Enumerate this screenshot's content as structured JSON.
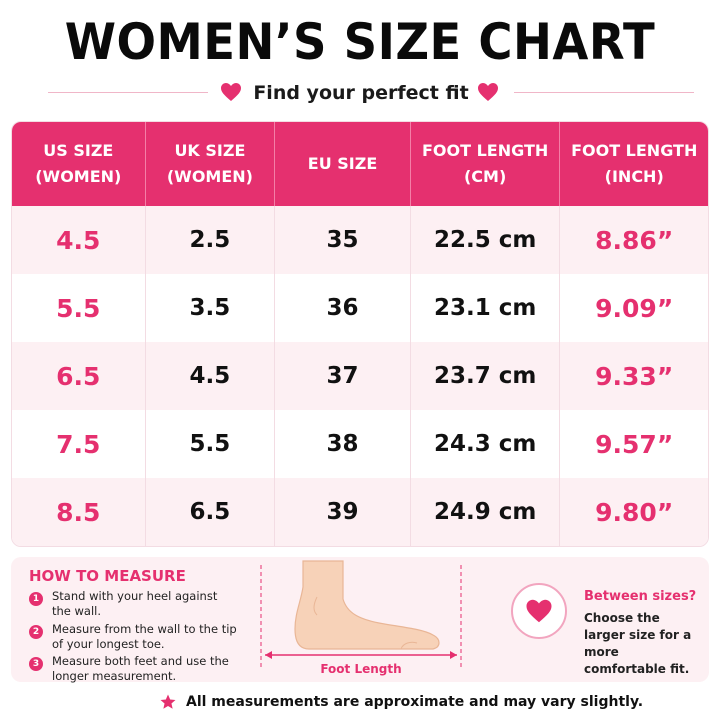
{
  "title": "WOMEN’S SIZE CHART",
  "subtitle": "Find your perfect fit",
  "colors": {
    "accent": "#e5306f",
    "row_tint": "#fdf0f3"
  },
  "table": {
    "headers": [
      [
        "US SIZE",
        "(WOMEN)"
      ],
      [
        "UK SIZE",
        "(WOMEN)"
      ],
      [
        "EU SIZE",
        ""
      ],
      [
        "FOOT LENGTH",
        "(CM)"
      ],
      [
        "FOOT LENGTH",
        "(INCH)"
      ]
    ],
    "rows": [
      [
        "4.5",
        "2.5",
        "35",
        "22.5 cm",
        "8.86”"
      ],
      [
        "5.5",
        "3.5",
        "36",
        "23.1 cm",
        "9.09”"
      ],
      [
        "6.5",
        "4.5",
        "37",
        "23.7 cm",
        "9.33”"
      ],
      [
        "7.5",
        "5.5",
        "38",
        "24.3 cm",
        "9.57”"
      ],
      [
        "8.5",
        "6.5",
        "39",
        "24.9 cm",
        "9.80”"
      ]
    ]
  },
  "how_to_measure": {
    "title": "HOW TO MEASURE",
    "steps": [
      {
        "num": "1",
        "text": "Stand with your heel against the wall."
      },
      {
        "num": "2",
        "text": "Measure from the wall to the tip of your longest toe."
      },
      {
        "num": "3",
        "text": "Measure both feet and use the longer measurement."
      }
    ],
    "foot_label": "Foot Length",
    "icons": [
      "foot-illustration",
      "heart-icon",
      "star-icon"
    ]
  },
  "tip": {
    "title": "Between sizes?",
    "text": "Choose the larger size for a more comfortable fit."
  },
  "note": "All measurements are approximate and may vary slightly."
}
